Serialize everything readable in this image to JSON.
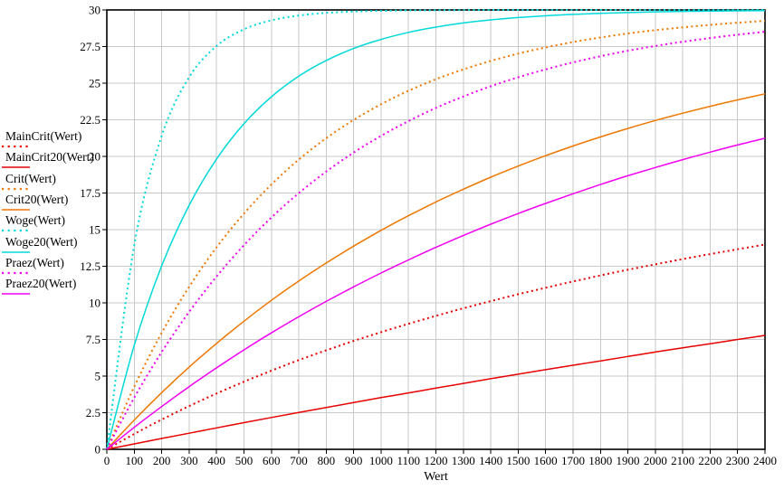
{
  "figure": {
    "background": "#ffffff",
    "border_color": "#000000",
    "grid_color": "#c9c9c9",
    "tick_color": "#000000",
    "text_color": "#000000"
  },
  "axes": {
    "xlabel": "Wert",
    "x_tick_labels": [
      "0",
      "100",
      "200",
      "300",
      "400",
      "500",
      "600",
      "700",
      "800",
      "900",
      "1000",
      "1100",
      "1200",
      "1300",
      "1400",
      "1500",
      "1600",
      "1700",
      "1800",
      "1900",
      "2000",
      "2100",
      "2200",
      "2300",
      "2400"
    ],
    "y_tick_labels": [
      "0",
      "2.5",
      "5",
      "7.5",
      "10",
      "12.5",
      "15",
      "17.5",
      "20",
      "22.5",
      "25",
      "27.5",
      "30"
    ]
  },
  "chart_data": {
    "type": "line",
    "title": "",
    "xlabel": "Wert",
    "ylabel": "",
    "xlim": [
      0,
      2400
    ],
    "ylim": [
      0,
      30
    ],
    "x_tick_step": 100,
    "y_tick_step": 2.5,
    "grid": true,
    "legend_position": "left",
    "x": [
      0,
      100,
      200,
      300,
      400,
      500,
      600,
      700,
      800,
      900,
      1000,
      1100,
      1200,
      1300,
      1400,
      1500,
      1600,
      1700,
      1800,
      1900,
      2000,
      2100,
      2200,
      2300,
      2400
    ],
    "series": [
      {
        "name": "MainCrit(Wert)",
        "color": "#e60000",
        "style": "dotted",
        "values": [
          0,
          1.05,
          2.03,
          2.95,
          3.81,
          4.62,
          5.37,
          6.09,
          6.76,
          7.4,
          8.0,
          8.57,
          9.11,
          9.63,
          10.12,
          10.59,
          11.03,
          11.46,
          11.87,
          12.26,
          12.63,
          12.99,
          13.33,
          13.66,
          13.98
        ]
      },
      {
        "name": "MainCrit20(Wert)",
        "color": "#e60000",
        "style": "solid",
        "values": [
          0,
          0.37,
          0.74,
          1.1,
          1.46,
          1.82,
          2.17,
          2.51,
          2.85,
          3.19,
          3.53,
          3.85,
          4.18,
          4.5,
          4.82,
          5.13,
          5.44,
          5.74,
          6.04,
          6.34,
          6.64,
          6.93,
          7.21,
          7.5,
          7.78
        ]
      },
      {
        "name": "Crit(Wert)",
        "color": "#ee7700",
        "style": "dotted",
        "values": [
          0,
          4.28,
          7.95,
          11.09,
          13.79,
          16.1,
          18.08,
          19.78,
          21.24,
          22.49,
          23.56,
          24.48,
          25.27,
          25.94,
          26.52,
          27.02,
          27.44,
          27.81,
          28.12,
          28.39,
          28.62,
          28.81,
          28.98,
          29.13,
          29.25
        ]
      },
      {
        "name": "Crit20(Wert)",
        "color": "#ee7700",
        "style": "solid",
        "values": [
          0,
          2.0,
          3.87,
          5.61,
          7.23,
          8.75,
          10.17,
          11.49,
          12.72,
          13.87,
          14.95,
          15.95,
          16.89,
          17.76,
          18.58,
          19.34,
          20.05,
          20.71,
          21.33,
          21.91,
          22.45,
          22.95,
          23.42,
          23.86,
          24.27
        ]
      },
      {
        "name": "Woge(Wert)",
        "color": "#00d9d9",
        "style": "dotted",
        "values": [
          0,
          13.94,
          21.4,
          25.4,
          27.54,
          28.68,
          29.29,
          29.62,
          29.8,
          29.89,
          29.94,
          29.97,
          29.98,
          29.99,
          30,
          30,
          30,
          30,
          30,
          30,
          30,
          30,
          30,
          30,
          30
        ]
      },
      {
        "name": "Woge20(Wert)",
        "color": "#00d9d9",
        "style": "solid",
        "values": [
          0,
          7.1,
          12.53,
          16.66,
          19.82,
          22.23,
          24.07,
          25.48,
          26.55,
          27.37,
          27.99,
          28.47,
          28.83,
          29.11,
          29.32,
          29.48,
          29.6,
          29.7,
          29.77,
          29.82,
          29.87,
          29.9,
          29.92,
          29.94,
          29.95
        ]
      },
      {
        "name": "Praez(Wert)",
        "color": "#f200f2",
        "style": "dotted",
        "values": [
          0,
          3.53,
          6.64,
          9.38,
          11.8,
          13.94,
          15.83,
          17.49,
          18.96,
          20.26,
          21.4,
          22.41,
          23.31,
          24.09,
          24.79,
          25.4,
          25.94,
          26.42,
          26.84,
          27.21,
          27.54,
          27.83,
          28.08,
          28.31,
          28.51
        ]
      },
      {
        "name": "Praez20(Wert)",
        "color": "#f200f2",
        "style": "solid",
        "values": [
          0,
          1.5,
          2.92,
          4.28,
          5.56,
          6.79,
          7.95,
          9.05,
          10.1,
          11.09,
          12.04,
          12.93,
          13.79,
          14.6,
          15.37,
          16.1,
          16.79,
          17.45,
          18.08,
          18.68,
          19.24,
          19.78,
          20.29,
          20.78,
          21.24
        ]
      }
    ]
  }
}
